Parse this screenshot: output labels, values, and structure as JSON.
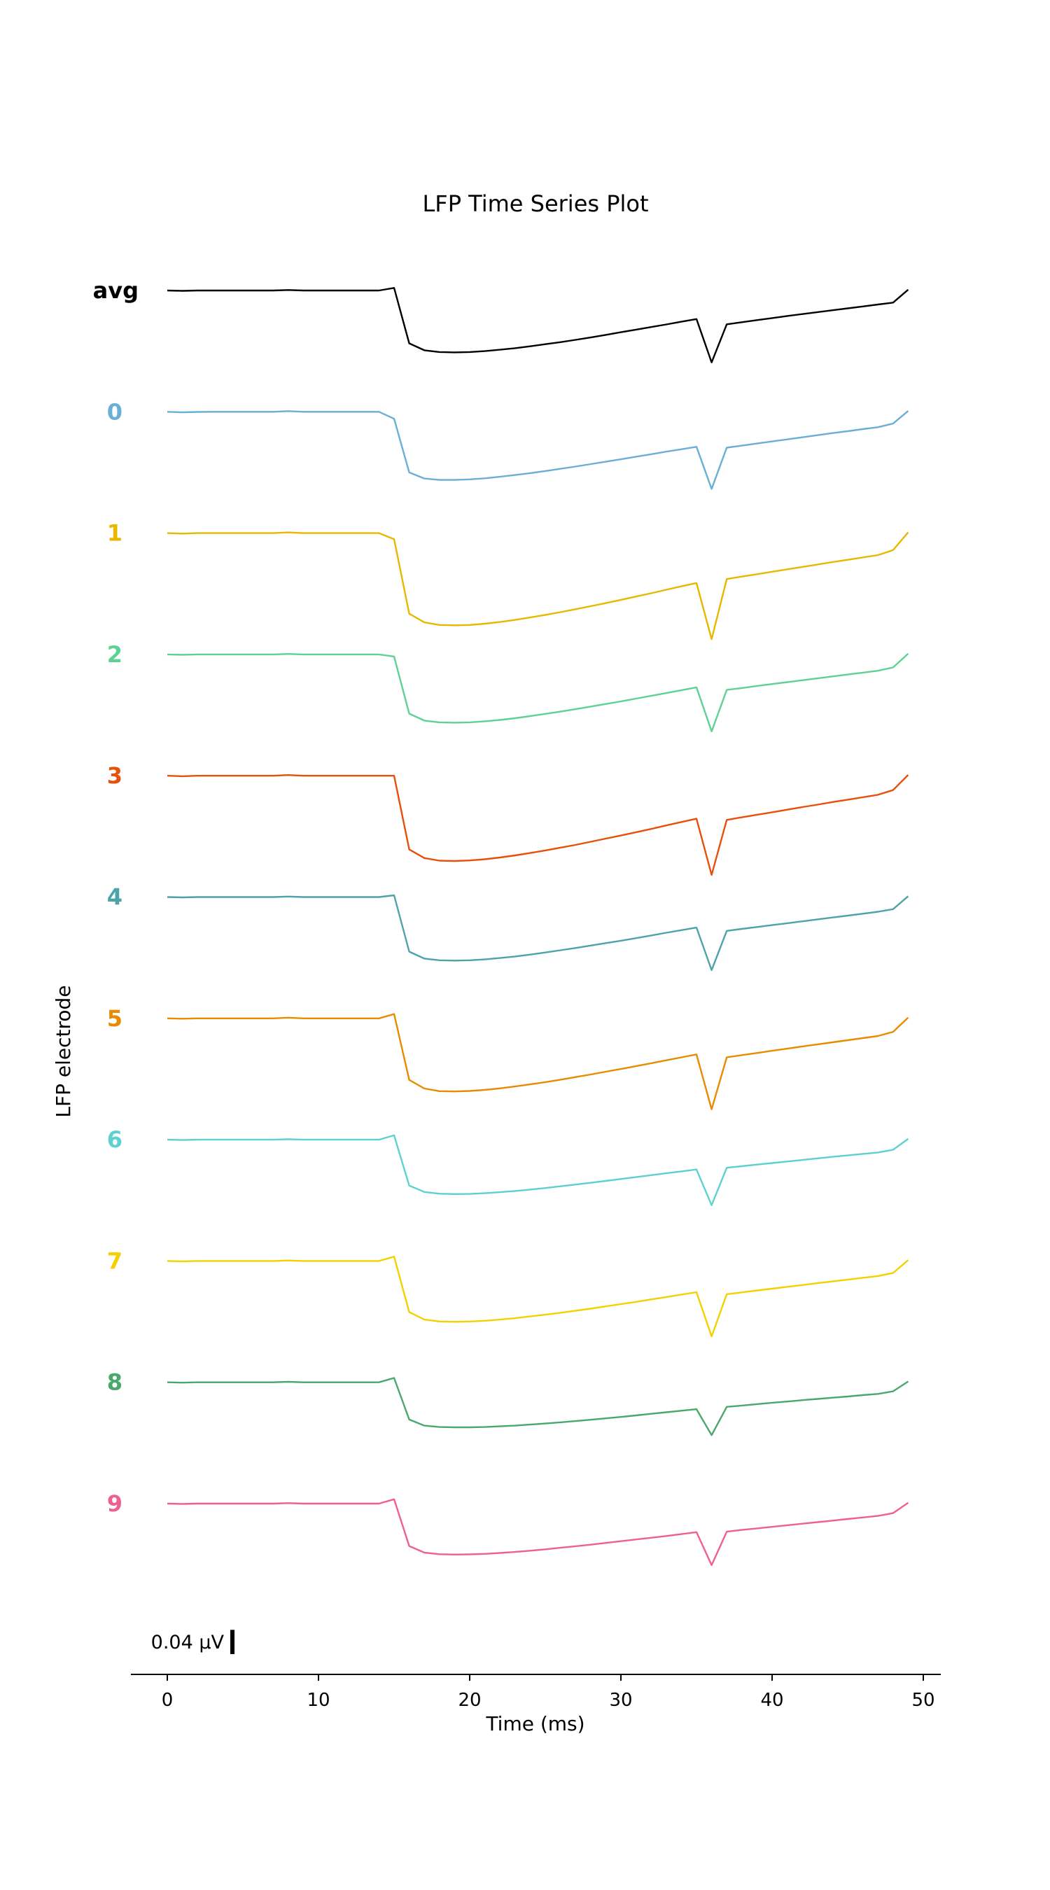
{
  "chart_data": {
    "type": "line",
    "title": "LFP Time Series Plot",
    "xlabel": "Time (ms)",
    "ylabel": "LFP electrode",
    "xlim": [
      -2.4,
      51.5
    ],
    "xticks": [
      0,
      10,
      20,
      30,
      40,
      50
    ],
    "x": [
      0,
      1,
      2,
      3,
      4,
      5,
      6,
      7,
      8,
      9,
      10,
      11,
      12,
      13,
      14,
      15,
      16,
      17,
      18,
      19,
      20,
      21,
      22,
      23,
      24,
      25,
      26,
      27,
      28,
      29,
      30,
      31,
      32,
      33,
      34,
      35,
      36,
      37,
      38,
      39,
      40,
      41,
      42,
      43,
      44,
      45,
      46,
      47,
      48,
      49
    ],
    "scale_bar": {
      "label": "0.04 μV",
      "value": 0.04
    },
    "grid": false,
    "series": [
      {
        "name": "avg",
        "color": "#000000",
        "bold_label": true,
        "y": [
          0,
          -0.0002,
          0,
          0,
          0,
          0,
          0,
          0,
          0.0003,
          0,
          0,
          0,
          0,
          0,
          0,
          0.0015,
          -0.0305,
          -0.0345,
          -0.0355,
          -0.0357,
          -0.0355,
          -0.035,
          -0.0342,
          -0.0333,
          -0.0322,
          -0.031,
          -0.0298,
          -0.0285,
          -0.0271,
          -0.0256,
          -0.0241,
          -0.0226,
          -0.0211,
          -0.0196,
          -0.018,
          -0.0165,
          -0.0415,
          -0.0195,
          -0.0183,
          -0.0171,
          -0.0159,
          -0.0147,
          -0.0136,
          -0.0125,
          -0.0114,
          -0.0103,
          -0.0092,
          -0.0081,
          -0.007,
          0.0005
        ]
      },
      {
        "name": "0",
        "color": "#6baed6",
        "y": [
          0,
          -0.0003,
          -0.0001,
          0,
          0,
          0,
          0,
          0,
          0.0004,
          0,
          0,
          0,
          0,
          0,
          0,
          -0.004,
          -0.035,
          -0.0385,
          -0.0393,
          -0.0393,
          -0.039,
          -0.0384,
          -0.0375,
          -0.0365,
          -0.0354,
          -0.0342,
          -0.0329,
          -0.0316,
          -0.0302,
          -0.0288,
          -0.0274,
          -0.0259,
          -0.0245,
          -0.023,
          -0.0216,
          -0.0202,
          -0.0445,
          -0.0207,
          -0.0195,
          -0.0183,
          -0.0171,
          -0.0159,
          -0.0147,
          -0.0135,
          -0.0123,
          -0.0112,
          -0.01,
          -0.0089,
          -0.0068,
          0.0005
        ]
      },
      {
        "name": "1",
        "color": "#e6b800",
        "y": [
          0,
          -0.0003,
          0,
          0,
          0,
          0,
          0,
          0,
          0.0004,
          0,
          0,
          0,
          0,
          0,
          0,
          -0.0035,
          -0.0465,
          -0.0515,
          -0.053,
          -0.0532,
          -0.053,
          -0.0523,
          -0.0513,
          -0.0501,
          -0.0487,
          -0.0472,
          -0.0456,
          -0.0439,
          -0.0422,
          -0.0404,
          -0.0385,
          -0.0366,
          -0.0347,
          -0.0327,
          -0.0307,
          -0.0288,
          -0.0612,
          -0.0265,
          -0.0251,
          -0.0237,
          -0.0223,
          -0.0209,
          -0.0195,
          -0.0181,
          -0.0167,
          -0.0154,
          -0.014,
          -0.0127,
          -0.0098,
          0.0005
        ]
      },
      {
        "name": "2",
        "color": "#5ed195",
        "y": [
          0,
          -0.0002,
          0,
          0,
          0,
          0,
          0,
          0,
          0.0003,
          0,
          0,
          0,
          0,
          0,
          0,
          -0.0012,
          -0.0342,
          -0.0382,
          -0.0392,
          -0.0394,
          -0.0392,
          -0.0386,
          -0.0378,
          -0.0368,
          -0.0356,
          -0.0343,
          -0.033,
          -0.0316,
          -0.0301,
          -0.0286,
          -0.0271,
          -0.0255,
          -0.0239,
          -0.0223,
          -0.0207,
          -0.019,
          -0.0444,
          -0.0205,
          -0.0194,
          -0.0182,
          -0.0171,
          -0.016,
          -0.0149,
          -0.0138,
          -0.0127,
          -0.0116,
          -0.0105,
          -0.0094,
          -0.0075,
          0.0005
        ]
      },
      {
        "name": "3",
        "color": "#e6500a",
        "y": [
          0,
          -0.0003,
          0,
          0,
          0,
          0,
          0,
          0,
          0.0004,
          0,
          0,
          0,
          0,
          0,
          0,
          0,
          -0.0425,
          -0.0475,
          -0.049,
          -0.0492,
          -0.0489,
          -0.0482,
          -0.0472,
          -0.046,
          -0.0446,
          -0.0431,
          -0.0415,
          -0.0399,
          -0.0381,
          -0.0363,
          -0.0345,
          -0.0326,
          -0.0307,
          -0.0287,
          -0.0267,
          -0.0248,
          -0.0572,
          -0.0255,
          -0.024,
          -0.0225,
          -0.0211,
          -0.0196,
          -0.0181,
          -0.0167,
          -0.0152,
          -0.0138,
          -0.0124,
          -0.011,
          -0.0083,
          0.0005
        ]
      },
      {
        "name": "4",
        "color": "#4ca3a8",
        "y": [
          0,
          -0.0002,
          0,
          0,
          0,
          0,
          0,
          0,
          0.0003,
          0,
          0,
          0,
          0,
          0,
          0,
          0.001,
          -0.0315,
          -0.0355,
          -0.0365,
          -0.0367,
          -0.0365,
          -0.036,
          -0.0352,
          -0.0343,
          -0.0332,
          -0.032,
          -0.0307,
          -0.0294,
          -0.028,
          -0.0266,
          -0.0252,
          -0.0237,
          -0.0222,
          -0.0206,
          -0.0191,
          -0.0176,
          -0.0422,
          -0.0195,
          -0.0184,
          -0.0173,
          -0.0162,
          -0.0151,
          -0.014,
          -0.0129,
          -0.0118,
          -0.0107,
          -0.0096,
          -0.0085,
          -0.007,
          0.0005
        ]
      },
      {
        "name": "5",
        "color": "#e88b00",
        "y": [
          0,
          -0.0002,
          0,
          0,
          0,
          0,
          0,
          0,
          0.0004,
          0,
          0,
          0,
          0,
          0,
          0,
          0.0025,
          -0.0355,
          -0.0405,
          -0.042,
          -0.0422,
          -0.0419,
          -0.0413,
          -0.0404,
          -0.0393,
          -0.0381,
          -0.0368,
          -0.0354,
          -0.0339,
          -0.0324,
          -0.0308,
          -0.0292,
          -0.0276,
          -0.0259,
          -0.0242,
          -0.0225,
          -0.0208,
          -0.0525,
          -0.0225,
          -0.0212,
          -0.02,
          -0.0187,
          -0.0175,
          -0.0162,
          -0.015,
          -0.0138,
          -0.0126,
          -0.0114,
          -0.0102,
          -0.0078,
          0.0005
        ]
      },
      {
        "name": "6",
        "color": "#5dd0d0",
        "y": [
          0,
          -0.0002,
          0,
          0,
          0,
          0,
          0,
          0,
          0.0003,
          0,
          0,
          0,
          0,
          0,
          0,
          0.0025,
          -0.0265,
          -0.0302,
          -0.0312,
          -0.0314,
          -0.0313,
          -0.0309,
          -0.0303,
          -0.0296,
          -0.0288,
          -0.0279,
          -0.0269,
          -0.0259,
          -0.0249,
          -0.0238,
          -0.0227,
          -0.0216,
          -0.0205,
          -0.0194,
          -0.0183,
          -0.0172,
          -0.0378,
          -0.0162,
          -0.0153,
          -0.0144,
          -0.0135,
          -0.0126,
          -0.0117,
          -0.0108,
          -0.0099,
          -0.0091,
          -0.0082,
          -0.0074,
          -0.0058,
          0.0005
        ]
      },
      {
        "name": "7",
        "color": "#f5d000",
        "y": [
          0,
          -0.0002,
          0,
          0,
          0,
          0,
          0,
          0,
          0.0003,
          0,
          0,
          0,
          0,
          0,
          0,
          0.0025,
          -0.0295,
          -0.0338,
          -0.0349,
          -0.0351,
          -0.0349,
          -0.0345,
          -0.0338,
          -0.033,
          -0.032,
          -0.031,
          -0.0299,
          -0.0287,
          -0.0275,
          -0.0262,
          -0.0249,
          -0.0236,
          -0.0222,
          -0.0208,
          -0.0194,
          -0.018,
          -0.0435,
          -0.0192,
          -0.0181,
          -0.017,
          -0.016,
          -0.0149,
          -0.0139,
          -0.0128,
          -0.0118,
          -0.0108,
          -0.0097,
          -0.0087,
          -0.0069,
          0.0005
        ]
      },
      {
        "name": "8",
        "color": "#4aa86c",
        "y": [
          0,
          -0.0002,
          0,
          0,
          0,
          0,
          0,
          0,
          0.0003,
          0,
          0,
          0,
          0,
          0,
          0,
          0.0025,
          -0.0215,
          -0.025,
          -0.0258,
          -0.026,
          -0.026,
          -0.0258,
          -0.0254,
          -0.025,
          -0.0244,
          -0.0238,
          -0.0231,
          -0.0224,
          -0.0216,
          -0.0208,
          -0.02,
          -0.0191,
          -0.0182,
          -0.0173,
          -0.0164,
          -0.0155,
          -0.0305,
          -0.0142,
          -0.0134,
          -0.0126,
          -0.0118,
          -0.0111,
          -0.0103,
          -0.0096,
          -0.0089,
          -0.0082,
          -0.0074,
          -0.0067,
          -0.0052,
          0.0005
        ]
      },
      {
        "name": "9",
        "color": "#f0608e",
        "y": [
          0,
          -0.0002,
          0,
          0,
          0,
          0,
          0,
          0,
          0.0003,
          0,
          0,
          0,
          0,
          0,
          0,
          0.0025,
          -0.0245,
          -0.0283,
          -0.0292,
          -0.0294,
          -0.0293,
          -0.029,
          -0.0285,
          -0.0279,
          -0.0272,
          -0.0264,
          -0.0255,
          -0.0246,
          -0.0237,
          -0.0227,
          -0.0217,
          -0.0207,
          -0.0197,
          -0.0187,
          -0.0176,
          -0.0165,
          -0.0355,
          -0.0162,
          -0.0152,
          -0.0143,
          -0.0134,
          -0.0125,
          -0.0116,
          -0.0107,
          -0.0098,
          -0.0089,
          -0.008,
          -0.0071,
          -0.0055,
          0.0005
        ]
      }
    ]
  }
}
